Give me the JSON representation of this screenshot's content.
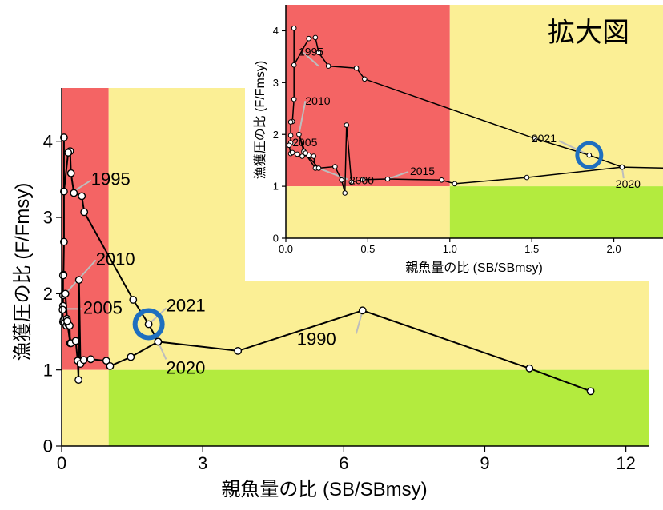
{
  "colors": {
    "overfished_zone": "#F46464",
    "caution_zone": "#FBEF95",
    "healthy_zone": "#B3EB3E",
    "highlight_ring": "#1f6fbf"
  },
  "chart_data": [
    {
      "type": "line",
      "panel": "main",
      "xlabel": "親魚量の比 (SB/SBmsy)",
      "ylabel": "漁獲圧の比 (F/Fmsy)",
      "xlim": [
        0,
        12.5
      ],
      "ylim": [
        0,
        4.7
      ],
      "xticks": [
        0,
        3,
        6,
        9,
        12
      ],
      "yticks": [
        0,
        1,
        2,
        3,
        4
      ],
      "zones": [
        {
          "name": "red",
          "x": [
            0,
            1
          ],
          "y": [
            1,
            4.7
          ]
        },
        {
          "name": "yellow-upper",
          "x": [
            1,
            12.5
          ],
          "y": [
            1,
            4.7
          ]
        },
        {
          "name": "yellow-lower",
          "x": [
            0,
            1
          ],
          "y": [
            0,
            1
          ]
        },
        {
          "name": "green",
          "x": [
            1,
            12.5
          ],
          "y": [
            0,
            1
          ]
        }
      ],
      "series": [
        {
          "x": [
            11.25,
            9.95,
            6.4,
            3.75,
            2.05,
            1.85,
            1.52,
            0.48,
            0.43,
            0.26,
            0.2,
            0.18,
            0.14,
            0.05,
            0.05,
            0.05,
            0.04,
            0.03,
            0.03,
            0.03,
            0.02,
            0.03,
            0.04,
            0.07,
            0.1,
            0.14,
            0.17,
            0.18,
            0.11,
            0.08,
            0.12,
            0.2,
            0.3,
            0.34,
            0.36,
            0.37,
            0.4,
            0.47,
            0.62,
            0.95,
            1.03,
            1.47,
            2.05
          ],
          "y": [
            0.72,
            1.02,
            1.78,
            1.25,
            1.37,
            1.6,
            1.92,
            3.07,
            3.28,
            3.32,
            3.58,
            3.87,
            3.85,
            3.34,
            4.05,
            2.68,
            2.25,
            2.24,
            1.98,
            1.84,
            1.79,
            1.63,
            1.65,
            1.62,
            1.58,
            1.6,
            1.58,
            1.35,
            1.67,
            2.0,
            1.64,
            1.35,
            1.38,
            1.12,
            0.87,
            2.18,
            1.08,
            1.13,
            1.14,
            1.12,
            1.05,
            1.17,
            1.37
          ]
        }
      ],
      "annotations": [
        {
          "label": "1995",
          "x": 0.2,
          "y": 3.32
        },
        {
          "label": "2010",
          "x": 0.08,
          "y": 2.0
        },
        {
          "label": "2005",
          "x": 0.05,
          "y": 1.8
        },
        {
          "label": "2021",
          "x": 1.85,
          "y": 1.6
        },
        {
          "label": "2020",
          "x": 2.05,
          "y": 1.37
        },
        {
          "label": "1990",
          "x": 6.4,
          "y": 1.78
        }
      ],
      "highlight": {
        "x": 1.85,
        "y": 1.6
      }
    },
    {
      "type": "line",
      "panel": "inset",
      "title": "拡大図",
      "xlabel": "親魚量の比 (SB/SBmsy)",
      "ylabel": "漁獲圧の比 (F/Fmsy)",
      "xlim": [
        0,
        2.3
      ],
      "ylim": [
        0,
        4.5
      ],
      "xticks": [
        0.0,
        0.5,
        1.0,
        1.5,
        2.0
      ],
      "xtick_labels": [
        "0.0",
        "0.5",
        "1.0",
        "1.5",
        "2.0"
      ],
      "yticks": [
        0,
        1,
        2,
        3,
        4
      ],
      "annotations": [
        {
          "label": "1995",
          "x": 0.2,
          "y": 3.32
        },
        {
          "label": "2010",
          "x": 0.08,
          "y": 2.0
        },
        {
          "label": "2005",
          "x": 0.05,
          "y": 1.8
        },
        {
          "label": "2000",
          "x": 0.2,
          "y": 1.35
        },
        {
          "label": "2015",
          "x": 0.62,
          "y": 1.14
        },
        {
          "label": "2021",
          "x": 1.85,
          "y": 1.6
        },
        {
          "label": "2020",
          "x": 2.05,
          "y": 1.37
        }
      ],
      "highlight": {
        "x": 1.85,
        "y": 1.6
      }
    }
  ]
}
